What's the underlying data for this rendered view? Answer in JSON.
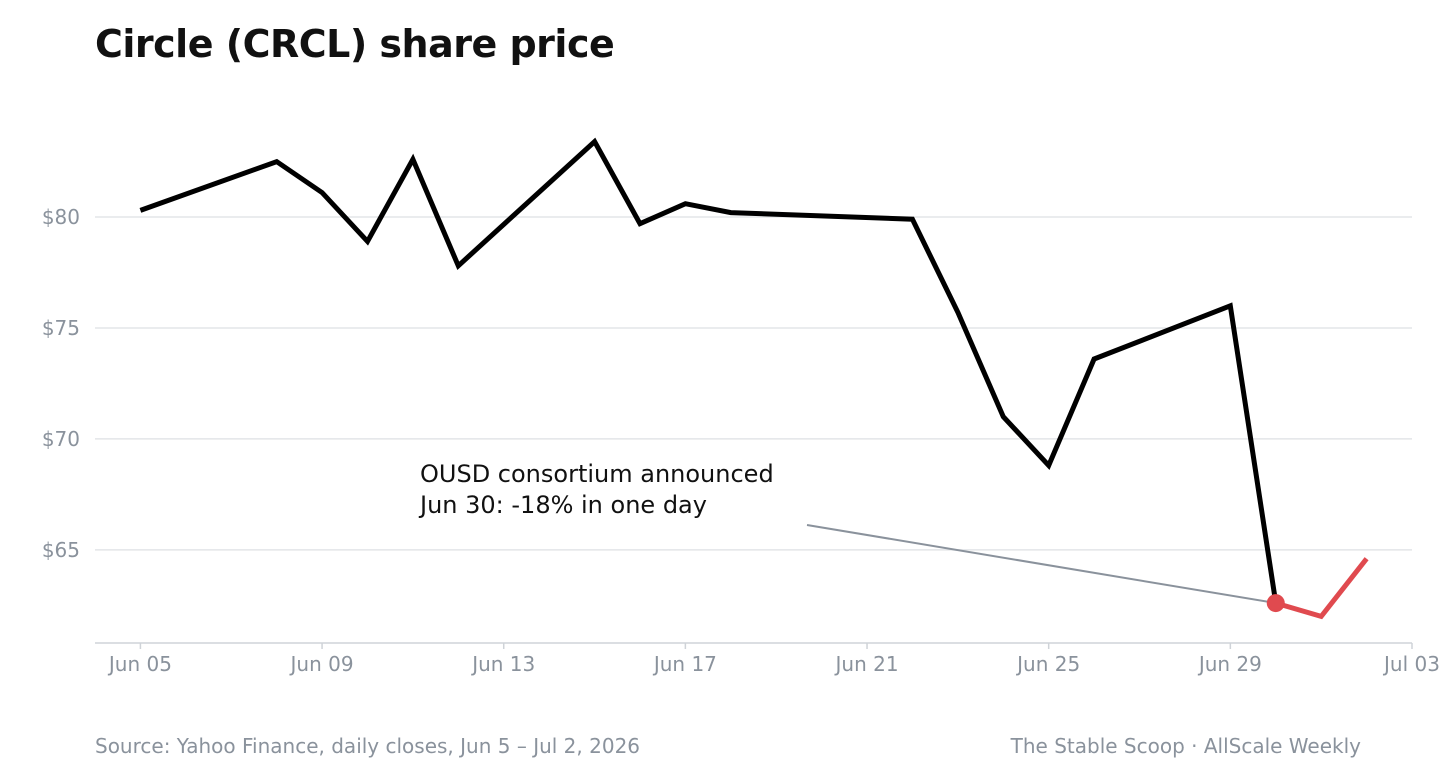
{
  "chart_data": {
    "type": "line",
    "title": "Circle (CRCL) share price",
    "xlabel": "",
    "ylabel": "",
    "grid": true,
    "y_ticks": [
      65,
      70,
      75,
      80
    ],
    "y_tick_labels": [
      "$65",
      "$70",
      "$75",
      "$80"
    ],
    "x_ticks": [
      "2026-06-05",
      "2026-06-09",
      "2026-06-13",
      "2026-06-17",
      "2026-06-21",
      "2026-06-25",
      "2026-06-29",
      "2026-07-03"
    ],
    "x_tick_labels": [
      "Jun 05",
      "Jun 09",
      "Jun 13",
      "Jun 17",
      "Jun 21",
      "Jun 25",
      "Jun 29",
      "Jul 03"
    ],
    "xlim": [
      "2026-06-04",
      "2026-07-03"
    ],
    "ylim": [
      60.8,
      85.5
    ],
    "series": [
      {
        "color": "#000000",
        "points": [
          {
            "x": "2026-06-05",
            "y": 80.3
          },
          {
            "x": "2026-06-08",
            "y": 82.5
          },
          {
            "x": "2026-06-09",
            "y": 81.1
          },
          {
            "x": "2026-06-10",
            "y": 78.9
          },
          {
            "x": "2026-06-11",
            "y": 82.6
          },
          {
            "x": "2026-06-12",
            "y": 77.8
          },
          {
            "x": "2026-06-15",
            "y": 83.4
          },
          {
            "x": "2026-06-16",
            "y": 79.7
          },
          {
            "x": "2026-06-17",
            "y": 80.6
          },
          {
            "x": "2026-06-18",
            "y": 80.2
          },
          {
            "x": "2026-06-22",
            "y": 79.9
          },
          {
            "x": "2026-06-23",
            "y": 75.7
          },
          {
            "x": "2026-06-24",
            "y": 71.0
          },
          {
            "x": "2026-06-25",
            "y": 68.8
          },
          {
            "x": "2026-06-26",
            "y": 73.6
          },
          {
            "x": "2026-06-29",
            "y": 76.0
          },
          {
            "x": "2026-06-30",
            "y": 62.6
          }
        ]
      },
      {
        "color": "#e04a4f",
        "points": [
          {
            "x": "2026-06-30",
            "y": 62.6
          },
          {
            "x": "2026-07-01",
            "y": 62.0
          },
          {
            "x": "2026-07-02",
            "y": 64.6
          }
        ]
      }
    ],
    "highlight_point": {
      "x": "2026-06-30",
      "y": 62.6,
      "color": "#e04a4f"
    },
    "annotation": {
      "lines": [
        "OUSD consortium announced",
        "Jun 30: -18% in one day"
      ],
      "target": {
        "x": "2026-06-30",
        "y": 62.6
      }
    }
  },
  "footer": {
    "source": "Source: Yahoo Finance, daily closes, Jun 5 – Jul 2, 2026",
    "credit": "The Stable Scoop · AllScale Weekly"
  },
  "colors": {
    "grid": "#e3e5e8",
    "axis": "#cfd3d8",
    "tick_text": "#8a929c",
    "annotation_leader": "#8a929c"
  }
}
